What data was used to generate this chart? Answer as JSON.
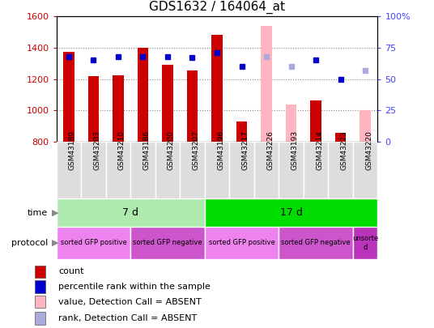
{
  "title": "GDS1632 / 164064_at",
  "samples": [
    "GSM43189",
    "GSM43203",
    "GSM43210",
    "GSM43186",
    "GSM43200",
    "GSM43207",
    "GSM43196",
    "GSM43217",
    "GSM43226",
    "GSM43193",
    "GSM43214",
    "GSM43223",
    "GSM43220"
  ],
  "count_values": [
    1375,
    1220,
    1225,
    1400,
    1290,
    1255,
    1480,
    930,
    null,
    null,
    1065,
    855,
    null
  ],
  "count_absent_values": [
    null,
    null,
    null,
    null,
    null,
    null,
    null,
    null,
    1540,
    1035,
    null,
    null,
    1000
  ],
  "rank_values": [
    68,
    65,
    68,
    68,
    68,
    67,
    71,
    60,
    null,
    null,
    65,
    50,
    null
  ],
  "rank_absent_values": [
    null,
    null,
    null,
    null,
    null,
    null,
    null,
    null,
    68,
    60,
    null,
    null,
    57
  ],
  "ylim_left": [
    800,
    1600
  ],
  "ylim_right": [
    0,
    100
  ],
  "yticks_left": [
    800,
    1000,
    1200,
    1400,
    1600
  ],
  "yticks_right": [
    0,
    25,
    50,
    75,
    100
  ],
  "time_groups": [
    {
      "label": "7 d",
      "start": 0,
      "end": 6,
      "color": "#AEEAAE"
    },
    {
      "label": "17 d",
      "start": 6,
      "end": 13,
      "color": "#00DD00"
    }
  ],
  "protocol_groups": [
    {
      "label": "sorted GFP positive",
      "start": 0,
      "end": 3,
      "color": "#EE82EE"
    },
    {
      "label": "sorted GFP negative",
      "start": 3,
      "end": 6,
      "color": "#CC55CC"
    },
    {
      "label": "sorted GFP positive",
      "start": 6,
      "end": 9,
      "color": "#EE82EE"
    },
    {
      "label": "sorted GFP negative",
      "start": 9,
      "end": 12,
      "color": "#CC55CC"
    },
    {
      "label": "unsorte\nd",
      "start": 12,
      "end": 13,
      "color": "#BB33BB"
    }
  ],
  "bar_width": 0.45,
  "count_color": "#CC0000",
  "count_absent_color": "#FFB6C1",
  "rank_color": "#0000CC",
  "rank_absent_color": "#AAAADD",
  "rank_marker_size": 5,
  "plot_bg_color": "#FFFFFF",
  "grid_color": "#888888",
  "yaxis_left_color": "#CC0000",
  "yaxis_right_color": "#4444FF",
  "legend_items": [
    {
      "label": "count",
      "color": "#CC0000"
    },
    {
      "label": "percentile rank within the sample",
      "color": "#0000CC"
    },
    {
      "label": "value, Detection Call = ABSENT",
      "color": "#FFB6C1"
    },
    {
      "label": "rank, Detection Call = ABSENT",
      "color": "#AAAADD"
    }
  ]
}
